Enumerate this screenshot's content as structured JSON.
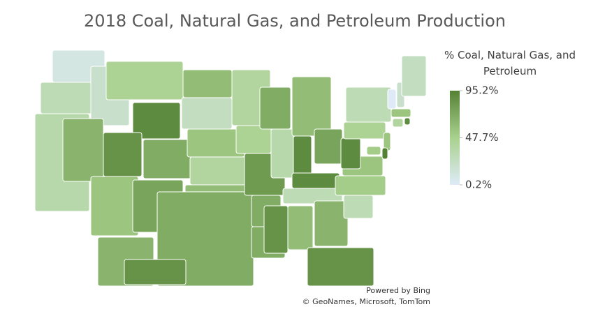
{
  "chart_data": {
    "type": "choropleth",
    "title": "2018 Coal, Natural Gas, and Petroleum Production",
    "legend_title": "% Coal, Natural Gas, and Petroleum",
    "zlim": [
      0.2,
      95.2
    ],
    "zticks": [
      {
        "value": 95.2,
        "label": "95.2%"
      },
      {
        "value": 47.7,
        "label": "47.7%"
      },
      {
        "value": 0.2,
        "label": "0.2%"
      }
    ],
    "colors": [
      "#deebf7",
      "#a9d18e",
      "#548235"
    ],
    "values": [
      10,
      30,
      35,
      20,
      65,
      45,
      90,
      85,
      55,
      70,
      75,
      60,
      25,
      55,
      40,
      60,
      70,
      40,
      45,
      80,
      70,
      70,
      70,
      35,
      60,
      90,
      75,
      90,
      30,
      85,
      60,
      65,
      85,
      30,
      50,
      55,
      90,
      45,
      30,
      55,
      95,
      50,
      0.2,
      20,
      25,
      55,
      40,
      90,
      65,
      85
    ],
    "attribution": [
      "Powered by Bing",
      "© GeoNames, Microsoft, TomTom"
    ]
  }
}
